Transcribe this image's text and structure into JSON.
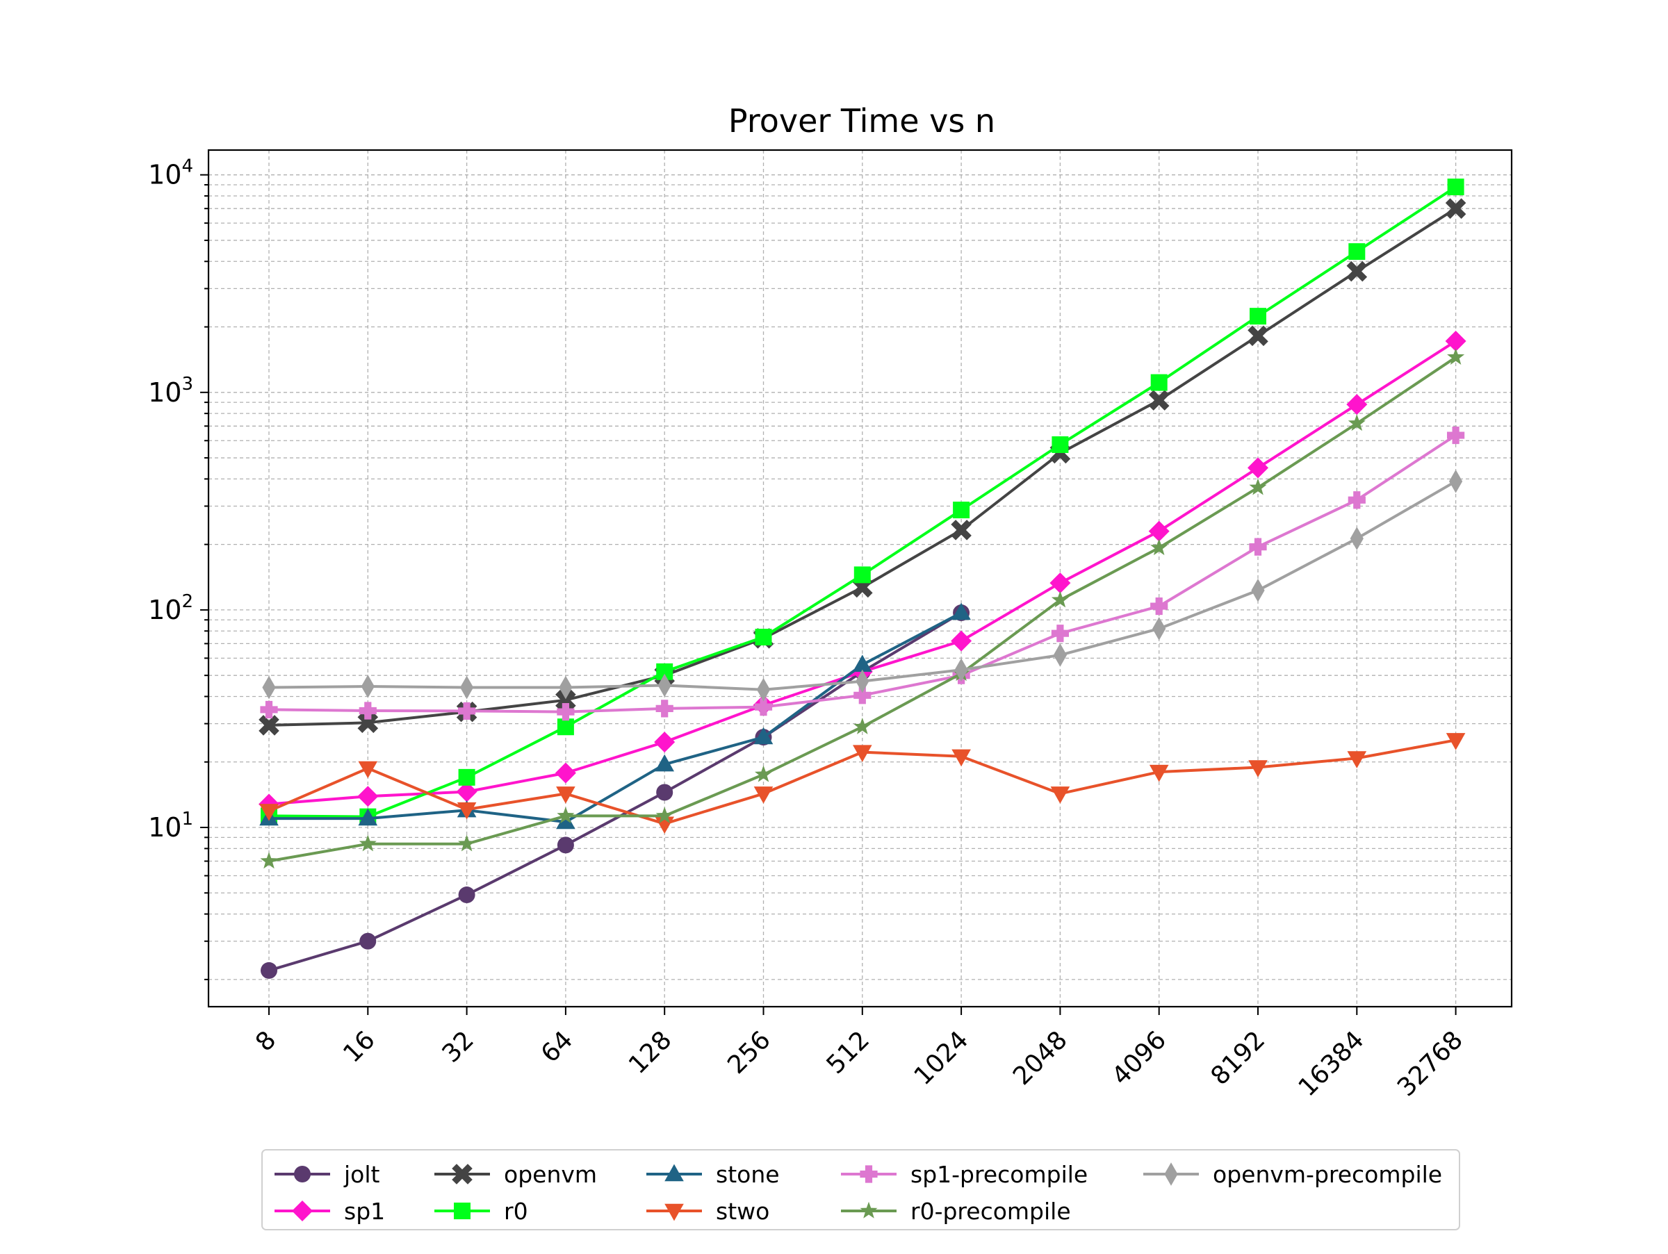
{
  "chart_data": {
    "type": "line",
    "title": "Prover Time vs n",
    "xlabel": "",
    "ylabel": "",
    "yscale": "log",
    "ylim": [
      1.5,
      13000
    ],
    "ytick_labels": [
      "10^1",
      "10^2",
      "10^3",
      "10^4"
    ],
    "ytick_values": [
      10,
      100,
      1000,
      10000
    ],
    "categories": [
      "8",
      "16",
      "32",
      "64",
      "128",
      "256",
      "512",
      "1024",
      "2048",
      "4096",
      "8192",
      "16384",
      "32768"
    ],
    "grid": true,
    "legend_position": "bottom-center",
    "series": [
      {
        "name": "jolt",
        "color": "#5a3a6e",
        "marker": "circle",
        "values": [
          2.2,
          3.0,
          4.9,
          8.3,
          14.5,
          26.0,
          52.0,
          97.0,
          null,
          null,
          null,
          null,
          null
        ]
      },
      {
        "name": "sp1",
        "color": "#ff14cc",
        "marker": "diamond",
        "values": [
          12.8,
          13.9,
          14.6,
          17.8,
          24.7,
          36.5,
          52.0,
          72.0,
          133.0,
          230.0,
          450.0,
          880.0,
          1720.0
        ]
      },
      {
        "name": "openvm",
        "color": "#444444",
        "marker": "x",
        "values": [
          29.5,
          30.3,
          34.0,
          38.5,
          50.0,
          74.0,
          127.0,
          233.0,
          525.0,
          920.0,
          1820.0,
          3600.0,
          7000.0
        ]
      },
      {
        "name": "r0",
        "color": "#00ff1a",
        "marker": "square",
        "values": [
          11.3,
          11.2,
          17.0,
          29.0,
          52.0,
          75.0,
          145.0,
          288.0,
          575.0,
          1110.0,
          2240.0,
          4440.0,
          8800.0
        ]
      },
      {
        "name": "stone",
        "color": "#1f6385",
        "marker": "triangle-up",
        "values": [
          11.0,
          11.0,
          12.0,
          10.6,
          19.5,
          26.0,
          56.0,
          97.0,
          null,
          null,
          null,
          null,
          null
        ]
      },
      {
        "name": "stwo",
        "color": "#e8522a",
        "marker": "triangle-down",
        "values": [
          11.9,
          18.7,
          12.1,
          14.3,
          10.4,
          14.3,
          22.2,
          21.2,
          14.3,
          18.0,
          18.9,
          20.8,
          25.2
        ]
      },
      {
        "name": "sp1-precompile",
        "color": "#dd77d0",
        "marker": "plus",
        "values": [
          34.8,
          34.4,
          34.3,
          34.0,
          35.2,
          35.8,
          40.5,
          50.0,
          78.0,
          104.0,
          195.0,
          320.0,
          635.0
        ]
      },
      {
        "name": "r0-precompile",
        "color": "#6a9a52",
        "marker": "star",
        "values": [
          7.0,
          8.4,
          8.4,
          11.3,
          11.3,
          17.5,
          29.0,
          51.0,
          111.0,
          193.0,
          365.0,
          720.0,
          1450.0
        ]
      },
      {
        "name": "openvm-precompile",
        "color": "#a0a0a0",
        "marker": "thin-diamond",
        "values": [
          44.0,
          44.5,
          44.0,
          44.0,
          45.0,
          43.0,
          47.0,
          53.0,
          62.0,
          82.0,
          123.0,
          213.0,
          390.0
        ]
      }
    ]
  }
}
